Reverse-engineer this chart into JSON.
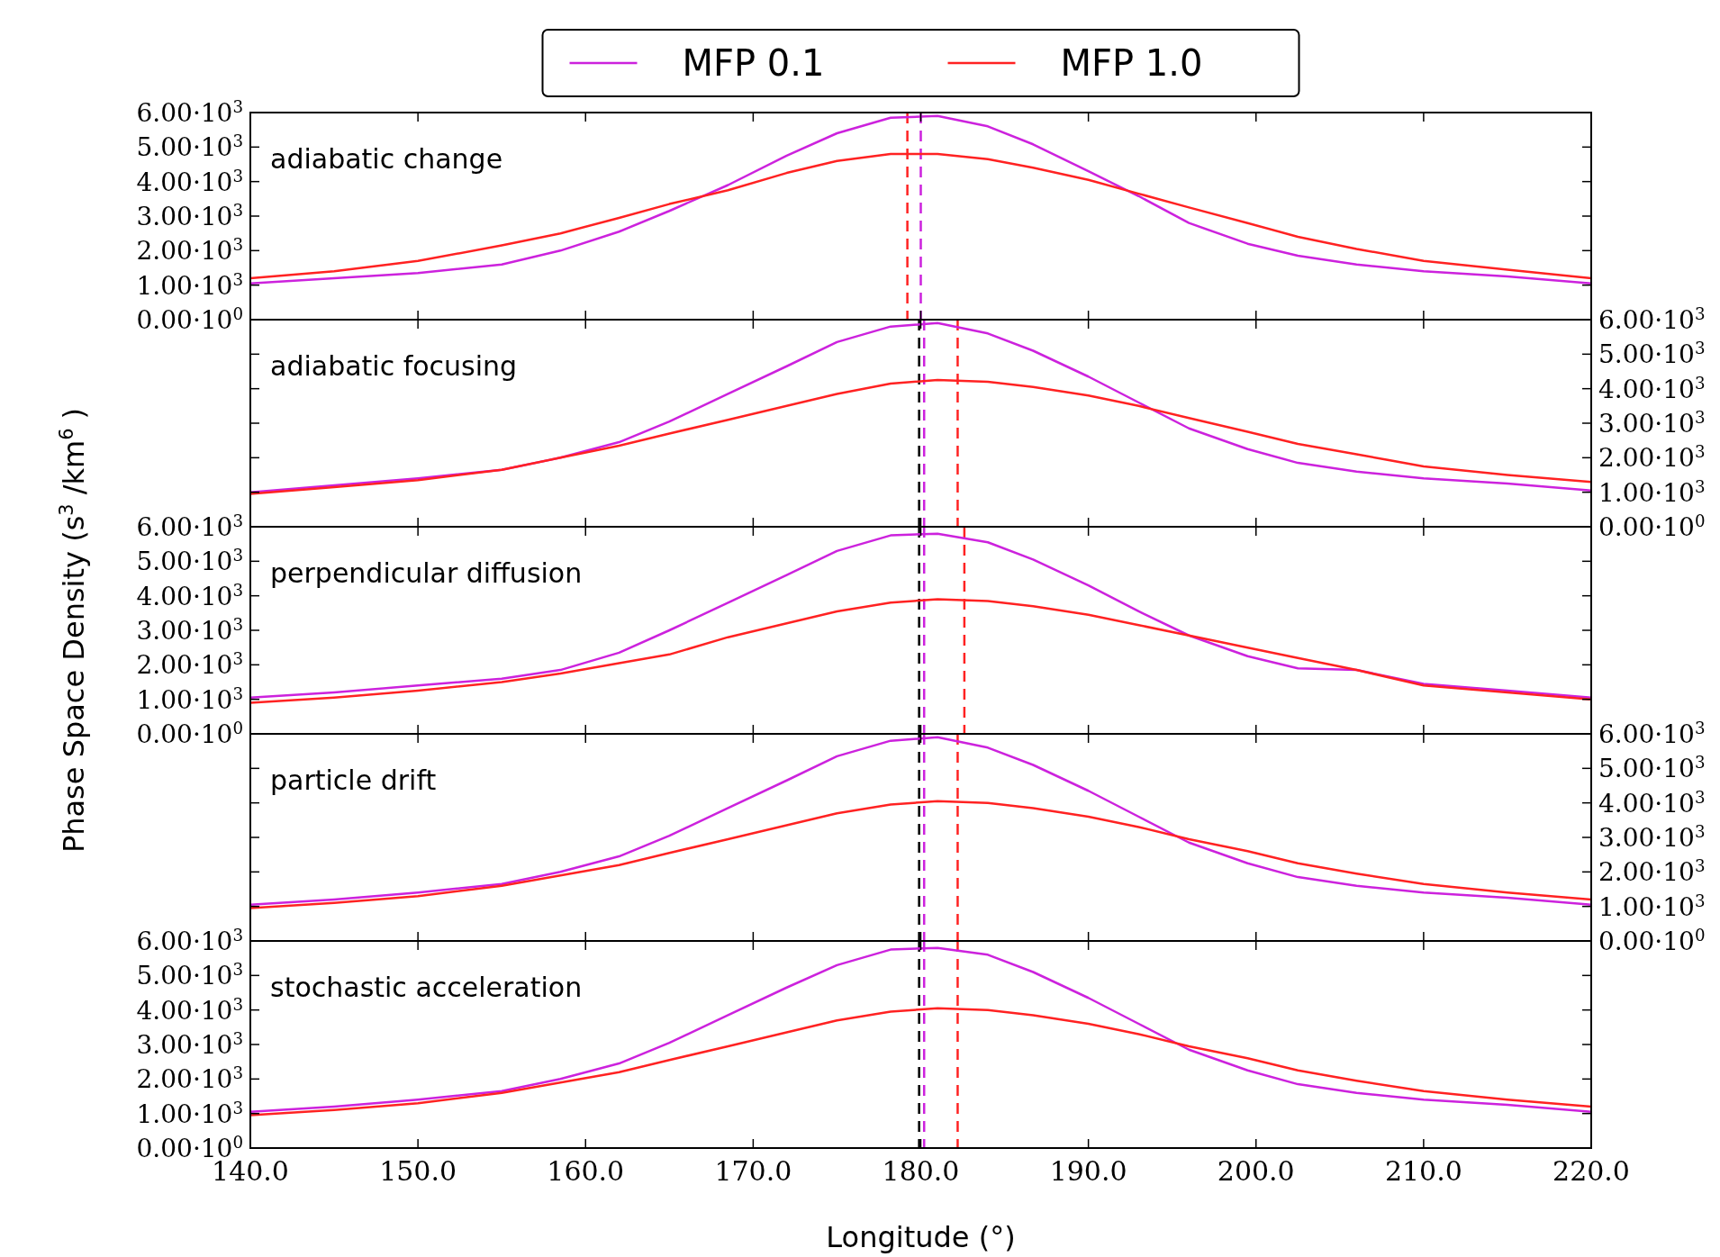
{
  "chart_data": [
    {
      "type": "line",
      "title": "adiabatic change",
      "legend": "top",
      "xlim": [
        140,
        220
      ],
      "xticks": [
        {
          "value": 140,
          "label": null
        },
        {
          "value": 150,
          "label": null
        },
        {
          "value": 160,
          "label": null
        },
        {
          "value": 170,
          "label": null
        },
        {
          "value": 180,
          "label": null
        },
        {
          "value": 190,
          "label": null
        },
        {
          "value": 200,
          "label": null
        },
        {
          "value": 210,
          "label": null
        },
        {
          "value": 220,
          "label": null
        }
      ],
      "ylim": [
        0,
        6000
      ],
      "yticks": [
        {
          "value": 0,
          "label": "0.00·10$^{0}$"
        },
        {
          "value": 1000,
          "label": "1.00·10$^{3}$"
        },
        {
          "value": 2000,
          "label": "2.00·10$^{3}$"
        },
        {
          "value": 3000,
          "label": "3.00·10$^{3}$"
        },
        {
          "value": 4000,
          "label": "4.00·10$^{3}$"
        },
        {
          "value": 5000,
          "label": "5.00·10$^{3}$"
        },
        {
          "value": 6000,
          "label": "6.00·10$^{3}$"
        }
      ],
      "tick_labels": "y",
      "x": [
        140,
        145,
        150,
        155,
        158.5,
        162,
        165,
        168.5,
        172,
        175,
        178.2,
        181,
        184,
        186.7,
        190,
        193,
        196,
        199.5,
        202.5,
        206,
        210,
        215,
        220
      ],
      "series": [
        {
          "name": "MFP 0.1",
          "color": "#cc22dd",
          "values": [
            1050,
            1200,
            1350,
            1600,
            2000,
            2550,
            3150,
            3900,
            4750,
            5400,
            5850,
            5900,
            5600,
            5080,
            4300,
            3580,
            2800,
            2200,
            1850,
            1600,
            1400,
            1250,
            1050
          ]
        },
        {
          "name": "MFP 1.0",
          "color": "#ff2222",
          "values": [
            1200,
            1400,
            1700,
            2150,
            2500,
            2950,
            3350,
            3750,
            4250,
            4600,
            4800,
            4800,
            4650,
            4400,
            4050,
            3650,
            3250,
            2800,
            2400,
            2050,
            1700,
            1450,
            1200
          ]
        }
      ],
      "ref_lines": [
        {
          "axis": "x",
          "value": 179.2,
          "color": "#ff2222",
          "line_style": "dashed"
        },
        {
          "axis": "x",
          "value": 180,
          "color": "#cc22dd",
          "line_style": "dashed"
        }
      ]
    },
    {
      "type": "line",
      "title": "adiabatic focusing",
      "xlim": [
        140,
        220
      ],
      "xticks": [
        {
          "value": 140,
          "label": null
        },
        {
          "value": 150,
          "label": null
        },
        {
          "value": 160,
          "label": null
        },
        {
          "value": 170,
          "label": null
        },
        {
          "value": 180,
          "label": null
        },
        {
          "value": 190,
          "label": null
        },
        {
          "value": 200,
          "label": null
        },
        {
          "value": 210,
          "label": null
        },
        {
          "value": 220,
          "label": null
        }
      ],
      "ylim": [
        0,
        6000
      ],
      "yticks": [
        {
          "value": 0,
          "label": "0.00·10$^{0}$"
        },
        {
          "value": 1000,
          "label": "1.00·10$^{3}$"
        },
        {
          "value": 2000,
          "label": "2.00·10$^{3}$"
        },
        {
          "value": 3000,
          "label": "3.00·10$^{3}$"
        },
        {
          "value": 4000,
          "label": "4.00·10$^{3}$"
        },
        {
          "value": 5000,
          "label": "5.00·10$^{3}$"
        },
        {
          "value": 6000,
          "label": "6.00·10$^{3}$"
        }
      ],
      "tick_labels": "y",
      "x": [
        140,
        145,
        150,
        155,
        158.5,
        162,
        165,
        168.5,
        172,
        175,
        178.2,
        181,
        184,
        186.7,
        190,
        193,
        196,
        199.5,
        202.5,
        206,
        210,
        215,
        220
      ],
      "series": [
        {
          "color": "#cc22dd",
          "values": [
            1000,
            1200,
            1400,
            1650,
            2000,
            2450,
            3050,
            3850,
            4650,
            5350,
            5800,
            5900,
            5600,
            5100,
            4350,
            3600,
            2850,
            2250,
            1850,
            1600,
            1400,
            1250,
            1050
          ]
        },
        {
          "color": "#ff2222",
          "values": [
            950,
            1150,
            1350,
            1650,
            2000,
            2350,
            2700,
            3100,
            3500,
            3850,
            4150,
            4250,
            4200,
            4050,
            3800,
            3500,
            3150,
            2750,
            2400,
            2100,
            1750,
            1500,
            1300
          ]
        }
      ],
      "ref_lines": [
        {
          "axis": "x",
          "value": 179.9,
          "color": "#000000",
          "line_style": "dashed"
        },
        {
          "axis": "x",
          "value": 180.2,
          "color": "#cc22dd",
          "line_style": "dashed"
        },
        {
          "axis": "x",
          "value": 182.2,
          "color": "#ff2222",
          "line_style": "dashed"
        }
      ]
    },
    {
      "type": "line",
      "title": "perpendicular diffusion",
      "ylabel": "Phase Space Density (s$^{3}$ /km$^{6}$ )",
      "xlim": [
        140,
        220
      ],
      "xticks": [
        {
          "value": 140,
          "label": null
        },
        {
          "value": 150,
          "label": null
        },
        {
          "value": 160,
          "label": null
        },
        {
          "value": 170,
          "label": null
        },
        {
          "value": 180,
          "label": null
        },
        {
          "value": 190,
          "label": null
        },
        {
          "value": 200,
          "label": null
        },
        {
          "value": 210,
          "label": null
        },
        {
          "value": 220,
          "label": null
        }
      ],
      "ylim": [
        0,
        6000
      ],
      "yticks": [
        {
          "value": 0,
          "label": "0.00·10$^{0}$"
        },
        {
          "value": 1000,
          "label": "1.00·10$^{3}$"
        },
        {
          "value": 2000,
          "label": "2.00·10$^{3}$"
        },
        {
          "value": 3000,
          "label": "3.00·10$^{3}$"
        },
        {
          "value": 4000,
          "label": "4.00·10$^{3}$"
        },
        {
          "value": 5000,
          "label": "5.00·10$^{3}$"
        },
        {
          "value": 6000,
          "label": "6.00·10$^{3}$"
        }
      ],
      "tick_labels": "y",
      "x": [
        140,
        145,
        150,
        155,
        158.5,
        162,
        165,
        168.5,
        172,
        175,
        178.2,
        181,
        184,
        186.7,
        190,
        193,
        196,
        199.5,
        202.5,
        206,
        210,
        215,
        220
      ],
      "series": [
        {
          "color": "#cc22dd",
          "values": [
            1050,
            1200,
            1400,
            1600,
            1850,
            2350,
            3000,
            3800,
            4600,
            5300,
            5750,
            5800,
            5550,
            5050,
            4300,
            3550,
            2850,
            2250,
            1900,
            1850,
            1450,
            1250,
            1050
          ]
        },
        {
          "color": "#ff2222",
          "values": [
            900,
            1050,
            1250,
            1500,
            1750,
            2050,
            2300,
            2800,
            3200,
            3550,
            3800,
            3900,
            3850,
            3700,
            3450,
            3150,
            2850,
            2500,
            2200,
            1850,
            1400,
            1200,
            1000
          ]
        }
      ],
      "ref_lines": [
        {
          "axis": "x",
          "value": 179.9,
          "color": "#000000",
          "line_style": "dashed"
        },
        {
          "axis": "x",
          "value": 180.2,
          "color": "#cc22dd",
          "line_style": "dashed"
        },
        {
          "axis": "x",
          "value": 182.6,
          "color": "#ff2222",
          "line_style": "dashed"
        }
      ]
    },
    {
      "type": "line",
      "title": "particle drift",
      "xlim": [
        140,
        220
      ],
      "xticks": [
        {
          "value": 140,
          "label": null
        },
        {
          "value": 150,
          "label": null
        },
        {
          "value": 160,
          "label": null
        },
        {
          "value": 170,
          "label": null
        },
        {
          "value": 180,
          "label": null
        },
        {
          "value": 190,
          "label": null
        },
        {
          "value": 200,
          "label": null
        },
        {
          "value": 210,
          "label": null
        },
        {
          "value": 220,
          "label": null
        }
      ],
      "ylim": [
        0,
        6000
      ],
      "yticks": [
        {
          "value": 0,
          "label": "0.00·10$^{0}$"
        },
        {
          "value": 1000,
          "label": "1.00·10$^{3}$"
        },
        {
          "value": 2000,
          "label": "2.00·10$^{3}$"
        },
        {
          "value": 3000,
          "label": "3.00·10$^{3}$"
        },
        {
          "value": 4000,
          "label": "4.00·10$^{3}$"
        },
        {
          "value": 5000,
          "label": "5.00·10$^{3}$"
        },
        {
          "value": 6000,
          "label": "6.00·10$^{3}$"
        }
      ],
      "tick_labels": "y",
      "x": [
        140,
        145,
        150,
        155,
        158.5,
        162,
        165,
        168.5,
        172,
        175,
        178.2,
        181,
        184,
        186.7,
        190,
        193,
        196,
        199.5,
        202.5,
        206,
        210,
        215,
        220
      ],
      "series": [
        {
          "color": "#cc22dd",
          "values": [
            1050,
            1200,
            1400,
            1650,
            2000,
            2450,
            3050,
            3850,
            4650,
            5350,
            5800,
            5900,
            5600,
            5100,
            4350,
            3600,
            2850,
            2250,
            1850,
            1600,
            1400,
            1250,
            1050
          ]
        },
        {
          "color": "#ff2222",
          "values": [
            950,
            1100,
            1300,
            1600,
            1900,
            2200,
            2550,
            2950,
            3350,
            3700,
            3950,
            4050,
            4000,
            3850,
            3600,
            3300,
            2950,
            2600,
            2250,
            1950,
            1650,
            1400,
            1200
          ]
        }
      ],
      "ref_lines": [
        {
          "axis": "x",
          "value": 179.9,
          "color": "#000000",
          "line_style": "dashed"
        },
        {
          "axis": "x",
          "value": 180.2,
          "color": "#cc22dd",
          "line_style": "dashed"
        },
        {
          "axis": "x",
          "value": 182.2,
          "color": "#ff2222",
          "line_style": "dashed"
        }
      ]
    },
    {
      "type": "line",
      "title": "stochastic acceleration",
      "xlabel": "Longitude (°)",
      "xlim": [
        140,
        220
      ],
      "xticks": [
        {
          "value": 140,
          "label": "140.0"
        },
        {
          "value": 150,
          "label": "150.0"
        },
        {
          "value": 160,
          "label": "160.0"
        },
        {
          "value": 170,
          "label": "170.0"
        },
        {
          "value": 180,
          "label": "180.0"
        },
        {
          "value": 190,
          "label": "190.0"
        },
        {
          "value": 200,
          "label": "200.0"
        },
        {
          "value": 210,
          "label": "210.0"
        },
        {
          "value": 220,
          "label": "220.0"
        }
      ],
      "ylim": [
        0,
        6000
      ],
      "yticks": [
        {
          "value": 0,
          "label": "0.00·10$^{0}$"
        },
        {
          "value": 1000,
          "label": "1.00·10$^{3}$"
        },
        {
          "value": 2000,
          "label": "2.00·10$^{3}$"
        },
        {
          "value": 3000,
          "label": "3.00·10$^{3}$"
        },
        {
          "value": 4000,
          "label": "4.00·10$^{3}$"
        },
        {
          "value": 5000,
          "label": "5.00·10$^{3}$"
        },
        {
          "value": 6000,
          "label": "6.00·10$^{3}$"
        }
      ],
      "x": [
        140,
        145,
        150,
        155,
        158.5,
        162,
        165,
        168.5,
        172,
        175,
        178.2,
        181,
        184,
        186.7,
        190,
        193,
        196,
        199.5,
        202.5,
        206,
        210,
        215,
        220
      ],
      "series": [
        {
          "color": "#cc22dd",
          "values": [
            1050,
            1200,
            1400,
            1650,
            2000,
            2450,
            3050,
            3850,
            4650,
            5300,
            5750,
            5800,
            5600,
            5100,
            4350,
            3600,
            2850,
            2250,
            1850,
            1600,
            1400,
            1250,
            1050
          ]
        },
        {
          "color": "#ff2222",
          "values": [
            950,
            1100,
            1300,
            1600,
            1900,
            2200,
            2550,
            2950,
            3350,
            3700,
            3950,
            4050,
            4000,
            3850,
            3600,
            3300,
            2950,
            2600,
            2250,
            1950,
            1650,
            1400,
            1200
          ]
        }
      ],
      "ref_lines": [
        {
          "axis": "x",
          "value": 179.9,
          "color": "#000000",
          "line_style": "dashed"
        },
        {
          "axis": "x",
          "value": 180.2,
          "color": "#cc22dd",
          "line_style": "dashed"
        },
        {
          "axis": "x",
          "value": 182.2,
          "color": "#ff2222",
          "line_style": "dashed"
        }
      ]
    }
  ]
}
